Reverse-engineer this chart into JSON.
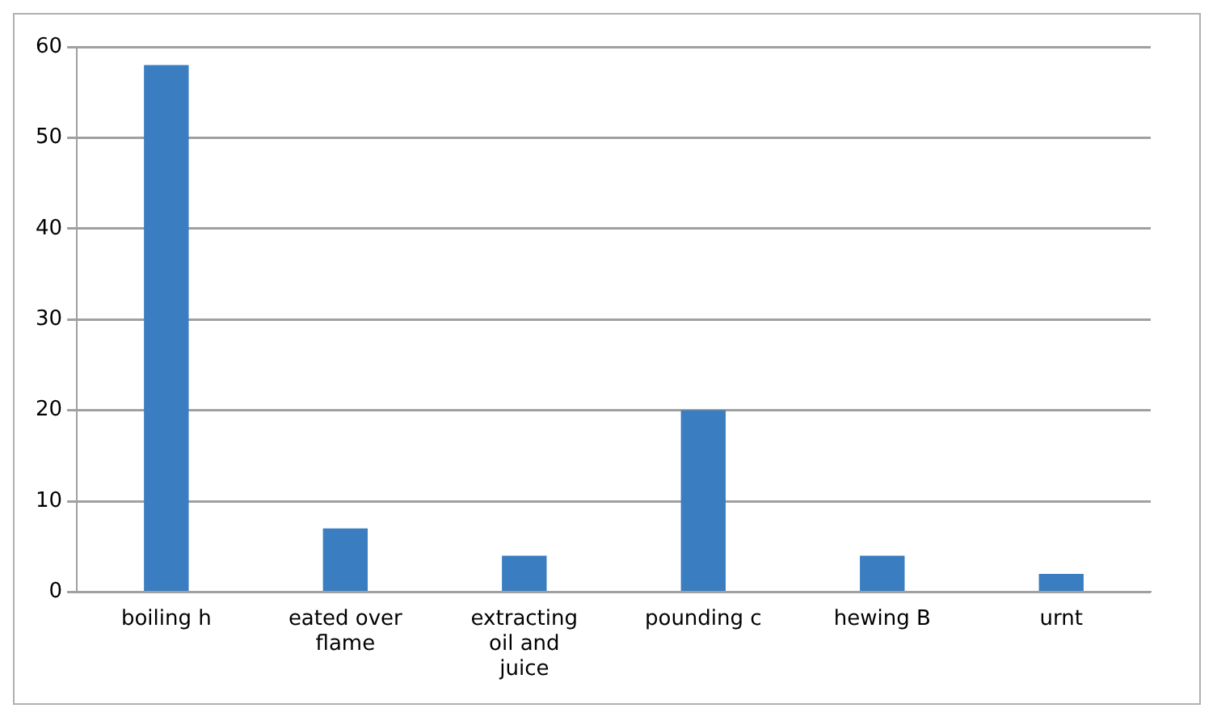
{
  "chart_data": {
    "type": "bar",
    "categories": [
      "boiling h",
      "eated over flame",
      "extracting oil and juice",
      "pounding c",
      "hewing B",
      "urnt"
    ],
    "values": [
      58,
      7,
      4,
      20,
      4,
      2
    ],
    "color": "#3a7dc0",
    "ylim": [
      0,
      60
    ],
    "yticks": [
      0,
      10,
      20,
      30,
      40,
      50,
      60
    ],
    "grid": "y",
    "legend": false
  }
}
